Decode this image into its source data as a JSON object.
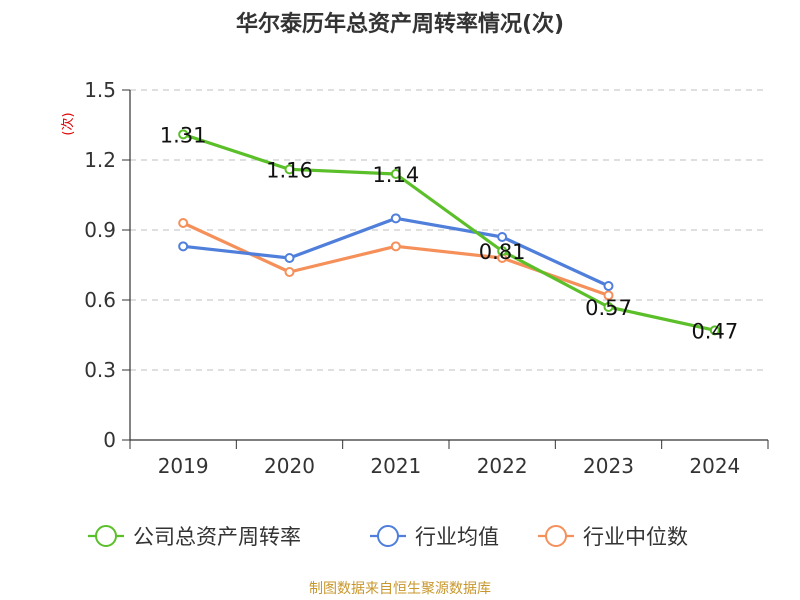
{
  "chart_data": {
    "type": "line",
    "title": "华尔泰历年总资产周转率情况(次)",
    "ylabel": "(次)",
    "xlabel": "",
    "categories": [
      "2019",
      "2020",
      "2021",
      "2022",
      "2023",
      "2024"
    ],
    "ylim": [
      0,
      1.5
    ],
    "yticks": [
      "0",
      "0.3",
      "0.6",
      "0.9",
      "1.2",
      "1.5"
    ],
    "grid": true,
    "legend_position": "bottom",
    "series": [
      {
        "name": "公司总资产周转率",
        "color": "#5bbf2a",
        "values": [
          1.31,
          1.16,
          1.14,
          0.81,
          0.57,
          0.47
        ],
        "labels": [
          "1.31",
          "1.16",
          "1.14",
          "0.81",
          "0.57",
          "0.47"
        ]
      },
      {
        "name": "行业均值",
        "color": "#4f7fdb",
        "values": [
          0.83,
          0.78,
          0.95,
          0.87,
          0.66,
          null
        ]
      },
      {
        "name": "行业中位数",
        "color": "#f5905a",
        "values": [
          0.93,
          0.72,
          0.83,
          0.78,
          0.62,
          null
        ]
      }
    ]
  },
  "source": "制图数据来自恒生聚源数据库"
}
